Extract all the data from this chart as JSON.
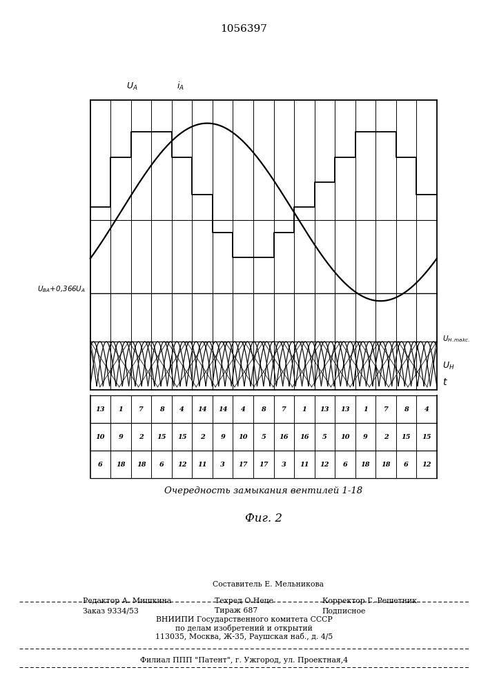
{
  "title": "1056397",
  "fig_label": "Фиг. 2",
  "bg_color": "#ffffff",
  "table_rows": [
    [
      "13",
      "1",
      "7",
      "8",
      "4",
      "14",
      "14",
      "4",
      "8",
      "7",
      "1",
      "13",
      "13",
      "1",
      "7",
      "8",
      "4"
    ],
    [
      "10",
      "9",
      "2",
      "15",
      "15",
      "2",
      "9",
      "10",
      "5",
      "16",
      "16",
      "5",
      "10",
      "9",
      "2",
      "15",
      "15"
    ],
    [
      "6",
      "18",
      "18",
      "6",
      "12",
      "11",
      "3",
      "17",
      "17",
      "3",
      "11",
      "12",
      "6",
      "18",
      "18",
      "6",
      "12"
    ]
  ],
  "caption": "Очередность замыкания вентилей 1-18",
  "n_cols": 17,
  "n_arches": 18
}
